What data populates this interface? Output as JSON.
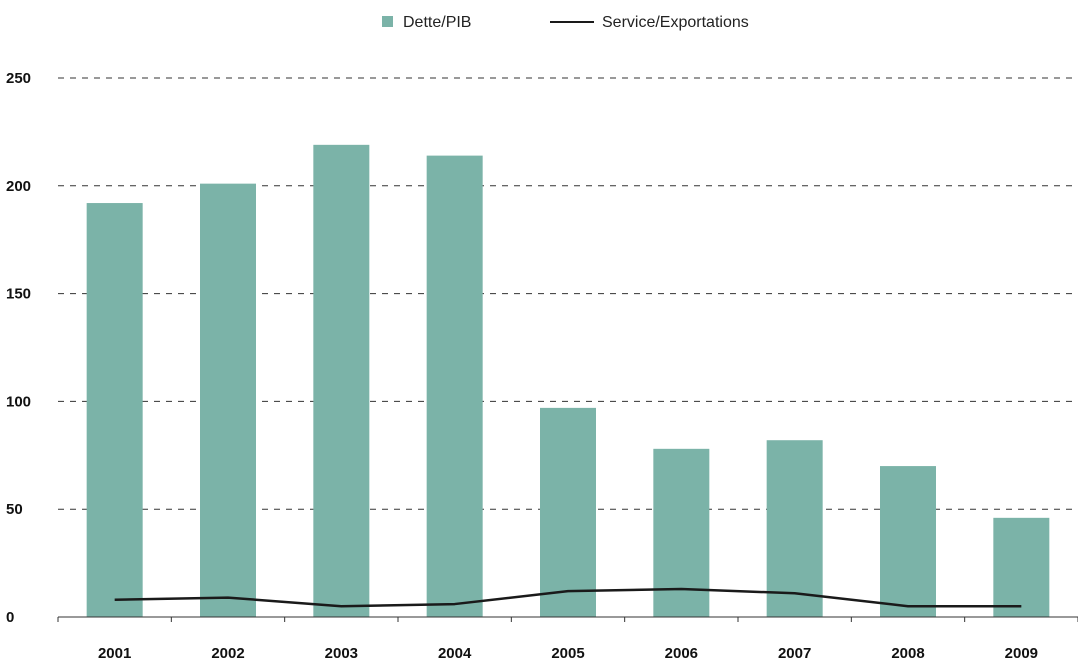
{
  "chart_data": {
    "type": "bar",
    "title": "",
    "xlabel": "",
    "ylabel": "",
    "categories": [
      "2001",
      "2002",
      "2003",
      "2004",
      "2005",
      "2006",
      "2007",
      "2008",
      "2009"
    ],
    "ylim": [
      0,
      250
    ],
    "yticks": [
      "0",
      "50",
      "100",
      "150",
      "200",
      "250"
    ],
    "grid": "horizontal-dashed",
    "legend_position": "top-center",
    "series": [
      {
        "name": "Dette/PIB",
        "kind": "bar",
        "color": "#7bb3a8",
        "values": [
          192,
          201,
          219,
          214,
          97,
          78,
          82,
          70,
          46
        ]
      },
      {
        "name": "Service/Exportations",
        "kind": "line",
        "color": "#1a1a1a",
        "values": [
          8,
          9,
          5,
          6,
          12,
          13,
          11,
          5,
          5
        ]
      }
    ]
  }
}
